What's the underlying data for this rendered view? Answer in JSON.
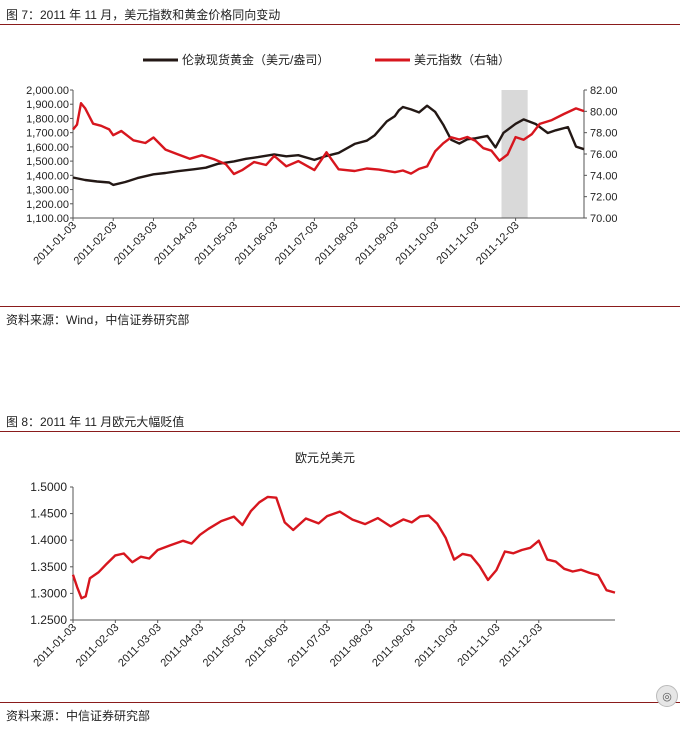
{
  "fig7": {
    "caption": "图 7：2011 年 11 月，美元指数和黄金价格同向变动",
    "source": "资料来源：Wind，中信证券研究部",
    "chart_data": {
      "type": "line",
      "x_labels": [
        "2011-01-03",
        "2011-02-03",
        "2011-03-03",
        "2011-04-03",
        "2011-05-03",
        "2011-06-03",
        "2011-07-03",
        "2011-08-03",
        "2011-09-03",
        "2011-10-03",
        "2011-11-03",
        "2011-12-03"
      ],
      "y_left_ticks": [
        "2,000.00",
        "1,900.00",
        "1,800.00",
        "1,700.00",
        "1,600.00",
        "1,500.00",
        "1,400.00",
        "1,300.00",
        "1,200.00",
        "1,100.00"
      ],
      "y_right_ticks": [
        "82.00",
        "80.00",
        "78.00",
        "76.00",
        "74.00",
        "72.00",
        "70.00"
      ],
      "ylim_left": [
        1100,
        2000
      ],
      "ylim_right": [
        70,
        82
      ],
      "highlight_x": [
        10.65,
        11.3
      ],
      "series": [
        {
          "name": "伦敦现货黄金（美元/盎司）",
          "axis": "left",
          "color": "#231815",
          "x": [
            0,
            0.3,
            0.6,
            0.9,
            1.0,
            1.3,
            1.6,
            2.0,
            2.3,
            2.6,
            3.0,
            3.3,
            3.6,
            4.0,
            4.3,
            4.6,
            5.0,
            5.3,
            5.6,
            6.0,
            6.3,
            6.6,
            7.0,
            7.3,
            7.5,
            7.8,
            8.0,
            8.1,
            8.2,
            8.4,
            8.6,
            8.8,
            9.0,
            9.2,
            9.4,
            9.6,
            9.8,
            10.0,
            10.3,
            10.5,
            10.7,
            11.0,
            11.2,
            11.5,
            11.8,
            12.0,
            12.3,
            12.5,
            12.7
          ],
          "y": [
            1385,
            1370,
            1360,
            1350,
            1330,
            1350,
            1380,
            1410,
            1420,
            1430,
            1440,
            1450,
            1480,
            1500,
            1520,
            1530,
            1545,
            1530,
            1540,
            1510,
            1540,
            1560,
            1620,
            1640,
            1680,
            1780,
            1820,
            1860,
            1880,
            1860,
            1840,
            1890,
            1850,
            1760,
            1650,
            1620,
            1650,
            1660,
            1680,
            1600,
            1700,
            1760,
            1790,
            1760,
            1700,
            1720,
            1740,
            1600,
            1580
          ]
        },
        {
          "name": "美元指数（右轴）",
          "axis": "right",
          "color": "#d7161e",
          "x": [
            0,
            0.1,
            0.2,
            0.3,
            0.5,
            0.7,
            0.9,
            1.0,
            1.2,
            1.5,
            1.8,
            2.0,
            2.3,
            2.6,
            2.9,
            3.2,
            3.5,
            3.8,
            4.0,
            4.2,
            4.5,
            4.8,
            5.0,
            5.3,
            5.6,
            6.0,
            6.3,
            6.6,
            7.0,
            7.3,
            7.6,
            8.0,
            8.2,
            8.4,
            8.6,
            8.8,
            9.0,
            9.2,
            9.4,
            9.6,
            9.8,
            10.0,
            10.2,
            10.4,
            10.6,
            10.8,
            11.0,
            11.2,
            11.4,
            11.6,
            11.9,
            12.2,
            12.5,
            12.7
          ],
          "y": [
            78.3,
            78.8,
            80.8,
            80.3,
            78.8,
            78.6,
            78.3,
            77.8,
            78.2,
            77.3,
            77.0,
            77.5,
            76.4,
            76.0,
            75.6,
            75.9,
            75.5,
            75.0,
            74.1,
            74.5,
            75.3,
            75.0,
            75.8,
            74.8,
            75.3,
            74.5,
            76.2,
            74.6,
            74.4,
            74.6,
            74.5,
            74.3,
            74.5,
            74.2,
            74.6,
            74.8,
            76.2,
            77.0,
            77.6,
            77.4,
            77.6,
            77.2,
            76.5,
            76.3,
            75.4,
            76.0,
            77.6,
            77.3,
            77.8,
            78.8,
            79.2,
            79.8,
            80.3,
            80.0
          ]
        }
      ]
    }
  },
  "fig8": {
    "caption": "图 8：2011 年 11 月欧元大幅贬值",
    "source": "资料来源：中信证券研究部",
    "chart_data": {
      "type": "line",
      "title": "欧元兑美元",
      "x_labels": [
        "2011-01-03",
        "2011-02-03",
        "2011-03-03",
        "2011-04-03",
        "2011-05-03",
        "2011-06-03",
        "2011-07-03",
        "2011-08-03",
        "2011-09-03",
        "2011-10-03",
        "2011-11-03",
        "2011-12-03"
      ],
      "y_ticks": [
        "1.5000",
        "1.4500",
        "1.4000",
        "1.3500",
        "1.3000",
        "1.2500"
      ],
      "ylim": [
        1.25,
        1.5
      ],
      "series": [
        {
          "name": "欧元兑美元",
          "color": "#d7161e",
          "x": [
            0,
            0.1,
            0.2,
            0.3,
            0.4,
            0.6,
            0.8,
            1.0,
            1.2,
            1.4,
            1.6,
            1.8,
            2.0,
            2.3,
            2.6,
            2.8,
            3.0,
            3.2,
            3.5,
            3.8,
            4.0,
            4.2,
            4.4,
            4.6,
            4.8,
            5.0,
            5.2,
            5.5,
            5.8,
            6.0,
            6.3,
            6.6,
            6.9,
            7.2,
            7.5,
            7.8,
            8.0,
            8.2,
            8.4,
            8.6,
            8.8,
            9.0,
            9.2,
            9.4,
            9.6,
            9.8,
            10.0,
            10.2,
            10.4,
            10.6,
            10.8,
            11.0,
            11.2,
            11.4,
            11.6,
            11.8,
            12.0,
            12.2,
            12.4,
            12.6,
            12.8
          ],
          "y": [
            1.335,
            1.31,
            1.29,
            1.295,
            1.33,
            1.34,
            1.355,
            1.37,
            1.375,
            1.36,
            1.37,
            1.365,
            1.38,
            1.39,
            1.4,
            1.395,
            1.41,
            1.42,
            1.435,
            1.445,
            1.43,
            1.455,
            1.47,
            1.48,
            1.48,
            1.435,
            1.42,
            1.44,
            1.43,
            1.445,
            1.455,
            1.44,
            1.43,
            1.44,
            1.425,
            1.44,
            1.435,
            1.445,
            1.445,
            1.43,
            1.405,
            1.365,
            1.375,
            1.37,
            1.35,
            1.325,
            1.345,
            1.38,
            1.375,
            1.38,
            1.385,
            1.4,
            1.365,
            1.36,
            1.345,
            1.34,
            1.345,
            1.34,
            1.335,
            1.305,
            1.3
          ]
        }
      ]
    }
  }
}
